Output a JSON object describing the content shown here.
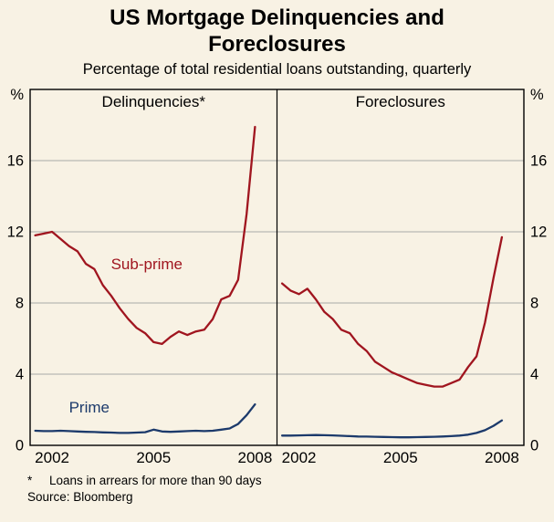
{
  "header": {
    "title": "US Mortgage Delinquencies and Foreclosures",
    "subtitle": "Percentage of total residential loans outstanding, quarterly"
  },
  "footnotes": {
    "marker": "*",
    "text": "Loans in arrears for more than 90 days",
    "source": "Source: Bloomberg"
  },
  "colors": {
    "background": "#f8f2e4",
    "grid": "#a9a9a9",
    "frame": "#000000",
    "subprime": "#a0151f",
    "prime": "#1c3a6b"
  },
  "chart_data": {
    "type": "line",
    "title": "US Mortgage Delinquencies and Foreclosures",
    "subtitle": "Percentage of total residential loans outstanding, quarterly",
    "unit": "%",
    "frequency": "quarterly",
    "x_start": 2001.5,
    "x_step": 0.25,
    "xlim": [
      2001.35,
      2008.65
    ],
    "ylim": [
      0,
      20
    ],
    "yticks": [
      0,
      4,
      8,
      12,
      16
    ],
    "xticks": [
      "2002",
      "2005",
      "2008"
    ],
    "legend_position": "inline-labels",
    "grid": "horizontal",
    "panels": [
      {
        "title": "Delinquencies*",
        "series": [
          {
            "name": "Sub-prime",
            "color": "#a0151f",
            "label": {
              "x": 2004.8,
              "y": 9.9
            },
            "values": [
              11.8,
              11.9,
              12.0,
              11.6,
              11.2,
              10.9,
              10.2,
              9.9,
              9.0,
              8.4,
              7.7,
              7.1,
              6.6,
              6.3,
              5.8,
              5.7,
              6.1,
              6.4,
              6.2,
              6.4,
              6.5,
              7.1,
              8.2,
              8.4,
              9.3,
              13.0,
              17.9
            ]
          },
          {
            "name": "Prime",
            "color": "#1c3a6b",
            "label": {
              "x": 2003.1,
              "y": 1.85
            },
            "values": [
              0.82,
              0.8,
              0.8,
              0.82,
              0.8,
              0.78,
              0.76,
              0.75,
              0.73,
              0.72,
              0.7,
              0.7,
              0.72,
              0.74,
              0.88,
              0.78,
              0.76,
              0.78,
              0.8,
              0.82,
              0.8,
              0.82,
              0.88,
              0.95,
              1.2,
              1.7,
              2.3
            ]
          }
        ]
      },
      {
        "title": "Foreclosures",
        "series": [
          {
            "name": "Sub-prime",
            "color": "#a0151f",
            "values": [
              9.1,
              8.7,
              8.5,
              8.8,
              8.2,
              7.5,
              7.1,
              6.5,
              6.3,
              5.7,
              5.3,
              4.7,
              4.4,
              4.1,
              3.9,
              3.7,
              3.5,
              3.4,
              3.3,
              3.3,
              3.5,
              3.7,
              4.4,
              5.0,
              6.9,
              9.4,
              11.7
            ]
          },
          {
            "name": "Prime",
            "color": "#1c3a6b",
            "values": [
              0.55,
              0.55,
              0.56,
              0.57,
              0.58,
              0.57,
              0.56,
              0.54,
              0.52,
              0.5,
              0.49,
              0.48,
              0.47,
              0.46,
              0.45,
              0.45,
              0.46,
              0.47,
              0.48,
              0.5,
              0.52,
              0.55,
              0.6,
              0.7,
              0.85,
              1.1,
              1.4
            ]
          }
        ]
      }
    ]
  }
}
